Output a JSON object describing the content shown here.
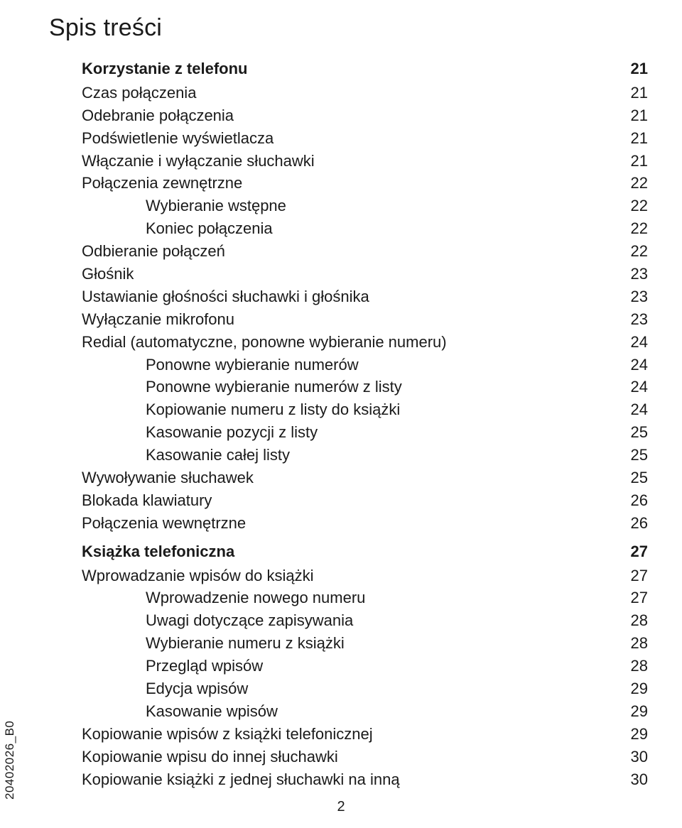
{
  "title": "Spis treści",
  "page_number": "2",
  "side_code": "20402026_B0",
  "entries": [
    {
      "level": 0,
      "label": "Korzystanie z telefonu",
      "page": "21"
    },
    {
      "level": 1,
      "label": "Czas połączenia",
      "page": "21"
    },
    {
      "level": 1,
      "label": "Odebranie połączenia",
      "page": "21"
    },
    {
      "level": 1,
      "label": "Podświetlenie wyświetlacza",
      "page": "21"
    },
    {
      "level": 1,
      "label": "Włączanie i wyłączanie słuchawki",
      "page": "21"
    },
    {
      "level": 1,
      "label": "Połączenia zewnętrzne",
      "page": "22"
    },
    {
      "level": 2,
      "label": "Wybieranie wstępne",
      "page": "22"
    },
    {
      "level": 2,
      "label": "Koniec połączenia",
      "page": "22"
    },
    {
      "level": 1,
      "label": "Odbieranie połączeń",
      "page": "22"
    },
    {
      "level": 1,
      "label": "Głośnik",
      "page": "23"
    },
    {
      "level": 1,
      "label": "Ustawianie głośności słuchawki i głośnika",
      "page": "23"
    },
    {
      "level": 1,
      "label": "Wyłączanie mikrofonu",
      "page": "23"
    },
    {
      "level": 1,
      "label": "Redial (automatyczne, ponowne wybieranie numeru)",
      "page": "24"
    },
    {
      "level": 2,
      "label": "Ponowne wybieranie numerów",
      "page": "24"
    },
    {
      "level": 2,
      "label": "Ponowne wybieranie numerów z listy",
      "page": "24"
    },
    {
      "level": 2,
      "label": "Kopiowanie numeru z listy do książki",
      "page": "24"
    },
    {
      "level": 2,
      "label": "Kasowanie pozycji z listy",
      "page": "25"
    },
    {
      "level": 2,
      "label": "Kasowanie całej listy",
      "page": "25"
    },
    {
      "level": 1,
      "label": "Wywoływanie słuchawek",
      "page": "25"
    },
    {
      "level": 1,
      "label": "Blokada klawiatury",
      "page": "26"
    },
    {
      "level": 1,
      "label": "Połączenia wewnętrzne",
      "page": "26"
    },
    {
      "level": 0,
      "label": "Książka telefoniczna",
      "page": "27"
    },
    {
      "level": 1,
      "label": "Wprowadzanie wpisów do książki",
      "page": "27"
    },
    {
      "level": 2,
      "label": "Wprowadzenie nowego numeru",
      "page": "27"
    },
    {
      "level": 2,
      "label": "Uwagi dotyczące zapisywania",
      "page": "28"
    },
    {
      "level": 2,
      "label": "Wybieranie numeru z książki",
      "page": "28"
    },
    {
      "level": 2,
      "label": "Przegląd wpisów",
      "page": "28"
    },
    {
      "level": 2,
      "label": "Edycja wpisów",
      "page": "29"
    },
    {
      "level": 2,
      "label": "Kasowanie wpisów",
      "page": "29"
    },
    {
      "level": 1,
      "label": "Kopiowanie wpisów z książki telefonicznej",
      "page": "29"
    },
    {
      "level": 1,
      "label": "Kopiowanie wpisu do innej słuchawki",
      "page": "30"
    },
    {
      "level": 1,
      "label": "Kopiowanie książki z jednej słuchawki na inną",
      "page": "30"
    }
  ]
}
